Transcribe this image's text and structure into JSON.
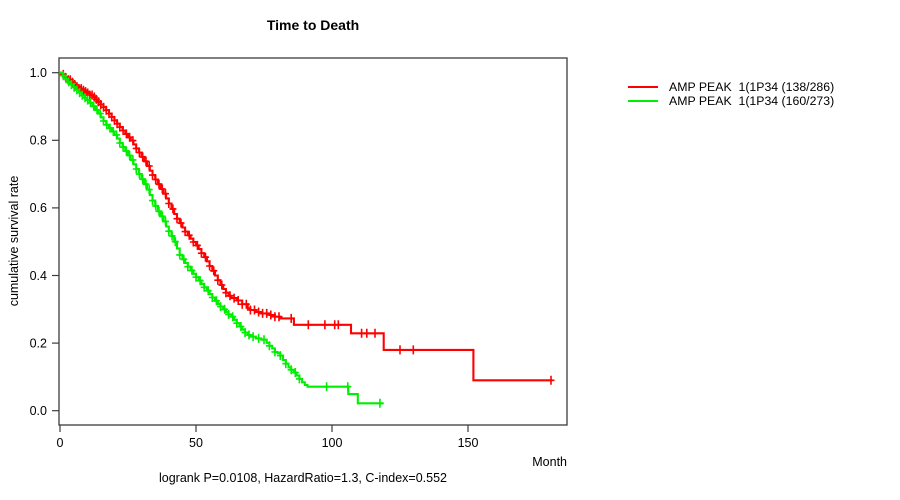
{
  "figure": {
    "title": "Time to Death",
    "x_axis_label": "Month",
    "y_axis_label": "cumulative survival rate",
    "caption": "logrank P=0.0108, HazardRatio=1.3, C-index=0.552"
  },
  "legend": {
    "items": [
      {
        "label": "AMP PEAK  1(1P34 (138/286)",
        "color": "#ff0000"
      },
      {
        "label": "AMP PEAK  1(1P34 (160/273)",
        "color": "#00ee00"
      }
    ]
  },
  "chart_data": {
    "type": "line",
    "subtype": "kaplan-meier-step",
    "title": "Time to Death",
    "xlabel": "Month",
    "ylabel": "cumulative survival rate",
    "xlim": [
      0,
      186
    ],
    "ylim": [
      0,
      1
    ],
    "grid": false,
    "legend_position": "right-outside",
    "annotation": "logrank P=0.0108, HazardRatio=1.3, C-index=0.552",
    "x_ticks": {
      "values": [
        0,
        50,
        100,
        150
      ],
      "labels": [
        "0",
        "50",
        "100",
        "150"
      ]
    },
    "y_ticks": {
      "values": [
        0,
        0.2,
        0.4,
        0.6,
        0.8,
        1.0
      ],
      "labels": [
        "0.0",
        "0.2",
        "0.4",
        "0.6",
        "0.8",
        "1.0"
      ]
    },
    "series": [
      {
        "name": "AMP PEAK  1(1P34 (138/286)",
        "color": "#ff0000",
        "events": 138,
        "n": 286,
        "end_time": 181,
        "points": [
          [
            0,
            1.0
          ],
          [
            1,
            0.995
          ],
          [
            2,
            0.986
          ],
          [
            3,
            0.979
          ],
          [
            4,
            0.972
          ],
          [
            5,
            0.965
          ],
          [
            6,
            0.959
          ],
          [
            7,
            0.953
          ],
          [
            8,
            0.948
          ],
          [
            9,
            0.944
          ],
          [
            10,
            0.94
          ],
          [
            11,
            0.934
          ],
          [
            12,
            0.928
          ],
          [
            13,
            0.921
          ],
          [
            14,
            0.914
          ],
          [
            15,
            0.906
          ],
          [
            16,
            0.898
          ],
          [
            17,
            0.889
          ],
          [
            18,
            0.879
          ],
          [
            19,
            0.869
          ],
          [
            20,
            0.859
          ],
          [
            21,
            0.849
          ],
          [
            22,
            0.839
          ],
          [
            23,
            0.829
          ],
          [
            24,
            0.819
          ],
          [
            25,
            0.809
          ],
          [
            26,
            0.799
          ],
          [
            27,
            0.788
          ],
          [
            28,
            0.776
          ],
          [
            29,
            0.764
          ],
          [
            30,
            0.751
          ],
          [
            31,
            0.738
          ],
          [
            32,
            0.724
          ],
          [
            33,
            0.71
          ],
          [
            34,
            0.697
          ],
          [
            35,
            0.684
          ],
          [
            36,
            0.67
          ],
          [
            37,
            0.656
          ],
          [
            38,
            0.642
          ],
          [
            39,
            0.628
          ],
          [
            40,
            0.613
          ],
          [
            41,
            0.597
          ],
          [
            42,
            0.582
          ],
          [
            43,
            0.568
          ],
          [
            44,
            0.555
          ],
          [
            45,
            0.542
          ],
          [
            46,
            0.53
          ],
          [
            47,
            0.519
          ],
          [
            48,
            0.509
          ],
          [
            49,
            0.499
          ],
          [
            50,
            0.489
          ],
          [
            51,
            0.478
          ],
          [
            52,
            0.466
          ],
          [
            53,
            0.454
          ],
          [
            54,
            0.442
          ],
          [
            55,
            0.428
          ],
          [
            56,
            0.414
          ],
          [
            57,
            0.4
          ],
          [
            58,
            0.386
          ],
          [
            59,
            0.372
          ],
          [
            60,
            0.36
          ],
          [
            61,
            0.349
          ],
          [
            62,
            0.34
          ],
          [
            63,
            0.333
          ],
          [
            65,
            0.326
          ],
          [
            67,
            0.315
          ],
          [
            69,
            0.303
          ],
          [
            70,
            0.298
          ],
          [
            72,
            0.292
          ],
          [
            74,
            0.288
          ],
          [
            77,
            0.283
          ],
          [
            79,
            0.278
          ],
          [
            81,
            0.273
          ],
          [
            86,
            0.254
          ],
          [
            107,
            0.229
          ],
          [
            119,
            0.18
          ],
          [
            152,
            0.09
          ]
        ],
        "censor_times": [
          1.2,
          2.1,
          3,
          3.8,
          4.6,
          5.4,
          6.2,
          7,
          7.8,
          8.6,
          9.4,
          10.2,
          11,
          11.8,
          12.6,
          13.4,
          14.2,
          15,
          16,
          17,
          18,
          19,
          20,
          21,
          22,
          23.2,
          24.4,
          25.6,
          26.8,
          28,
          29.2,
          30.4,
          31.6,
          32.8,
          34,
          35.2,
          36.4,
          37.6,
          38.8,
          40,
          41.5,
          43,
          44.5,
          46,
          47.5,
          49,
          50.5,
          52,
          53.5,
          55,
          56.5,
          58,
          59.5,
          61,
          62.5,
          64,
          65.5,
          67,
          68.5,
          70,
          71.5,
          73,
          74.5,
          76,
          77.5,
          79,
          80.5,
          85,
          91.3,
          97.4,
          101,
          102.3,
          110.9,
          112.8,
          115.8,
          125,
          129.9,
          180.5
        ]
      },
      {
        "name": "AMP PEAK  1(1P34 (160/273)",
        "color": "#00ee00",
        "events": 160,
        "n": 273,
        "end_time": 119,
        "points": [
          [
            0,
            1.0
          ],
          [
            1,
            0.991
          ],
          [
            2,
            0.982
          ],
          [
            3,
            0.973
          ],
          [
            4,
            0.965
          ],
          [
            5,
            0.957
          ],
          [
            6,
            0.949
          ],
          [
            7,
            0.941
          ],
          [
            8,
            0.933
          ],
          [
            9,
            0.926
          ],
          [
            10,
            0.919
          ],
          [
            11,
            0.911
          ],
          [
            12,
            0.901
          ],
          [
            13,
            0.89
          ],
          [
            14,
            0.879
          ],
          [
            15,
            0.868
          ],
          [
            16,
            0.857
          ],
          [
            17,
            0.846
          ],
          [
            18,
            0.836
          ],
          [
            19,
            0.826
          ],
          [
            20,
            0.816
          ],
          [
            21,
            0.805
          ],
          [
            22,
            0.792
          ],
          [
            23,
            0.78
          ],
          [
            24,
            0.768
          ],
          [
            25,
            0.755
          ],
          [
            26,
            0.742
          ],
          [
            27,
            0.729
          ],
          [
            28,
            0.715
          ],
          [
            29,
            0.7
          ],
          [
            30,
            0.685
          ],
          [
            31,
            0.67
          ],
          [
            32,
            0.654
          ],
          [
            33,
            0.638
          ],
          [
            34,
            0.622
          ],
          [
            35,
            0.606
          ],
          [
            36,
            0.59
          ],
          [
            37,
            0.575
          ],
          [
            38,
            0.56
          ],
          [
            39,
            0.545
          ],
          [
            40,
            0.531
          ],
          [
            41,
            0.517
          ],
          [
            42,
            0.5
          ],
          [
            43,
            0.48
          ],
          [
            44,
            0.461
          ],
          [
            45,
            0.448
          ],
          [
            46,
            0.437
          ],
          [
            47,
            0.426
          ],
          [
            48,
            0.415
          ],
          [
            49,
            0.405
          ],
          [
            50,
            0.395
          ],
          [
            51,
            0.385
          ],
          [
            52,
            0.375
          ],
          [
            53,
            0.365
          ],
          [
            54,
            0.355
          ],
          [
            55,
            0.345
          ],
          [
            56,
            0.335
          ],
          [
            57,
            0.325
          ],
          [
            58,
            0.316
          ],
          [
            59,
            0.308
          ],
          [
            60,
            0.3
          ],
          [
            61,
            0.292
          ],
          [
            62,
            0.285
          ],
          [
            63,
            0.278
          ],
          [
            64,
            0.269
          ],
          [
            65,
            0.259
          ],
          [
            66,
            0.249
          ],
          [
            67,
            0.24
          ],
          [
            68,
            0.231
          ],
          [
            69,
            0.224
          ],
          [
            70,
            0.219
          ],
          [
            72,
            0.214
          ],
          [
            74,
            0.21
          ],
          [
            76,
            0.201
          ],
          [
            77,
            0.192
          ],
          [
            78,
            0.184
          ],
          [
            79,
            0.174
          ],
          [
            80,
            0.17
          ],
          [
            81,
            0.163
          ],
          [
            82,
            0.15
          ],
          [
            83,
            0.139
          ],
          [
            84,
            0.128
          ],
          [
            85,
            0.121
          ],
          [
            86,
            0.113
          ],
          [
            87,
            0.104
          ],
          [
            88,
            0.094
          ],
          [
            89,
            0.084
          ],
          [
            90,
            0.076
          ],
          [
            91,
            0.071
          ],
          [
            106,
            0.049
          ],
          [
            109.5,
            0.022
          ]
        ],
        "censor_times": [
          1.2,
          2.2,
          3.2,
          4.2,
          5.2,
          6.2,
          7.2,
          8.2,
          9.2,
          10.2,
          11.2,
          12.4,
          13.6,
          14.8,
          16,
          17.2,
          18.4,
          19.6,
          20.8,
          22,
          23.2,
          24.4,
          25.6,
          26.8,
          28,
          29.2,
          30.4,
          31.6,
          32.8,
          34,
          35.2,
          36.4,
          37.6,
          38.8,
          40,
          41.2,
          42.4,
          44,
          45.5,
          47,
          48.5,
          50,
          51.5,
          53,
          54.5,
          56,
          57.5,
          59,
          60.5,
          62,
          63.5,
          65,
          66.5,
          68,
          69.5,
          71,
          73,
          75,
          77,
          79,
          81,
          83,
          85,
          86.5,
          88,
          98,
          105.8,
          117.6
        ]
      }
    ]
  }
}
